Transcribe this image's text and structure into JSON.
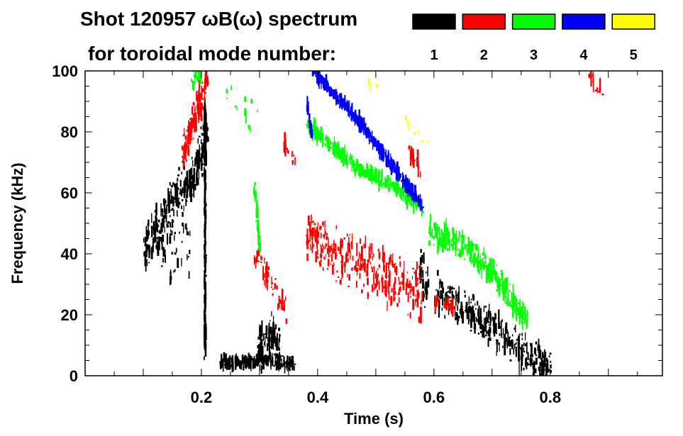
{
  "chart_data": {
    "type": "heatmap",
    "title": "Shot 120957 ωB(ω) spectrum",
    "subtitle": "for toroidal mode number:",
    "xlabel": "Time (s)",
    "ylabel": "Frequency (kHz)",
    "xlim": [
      0,
      0.993
    ],
    "ylim": [
      0,
      100
    ],
    "xticks": [
      0.2,
      0.4,
      0.6,
      0.8
    ],
    "xtick_labels": [
      "0.2",
      "0.4",
      "0.6",
      "0.8"
    ],
    "yticks": [
      0,
      20,
      40,
      60,
      80,
      100
    ],
    "ytick_labels": [
      "0",
      "20",
      "40",
      "60",
      "80",
      "100"
    ],
    "grid": false,
    "legend_placement": "top-right",
    "legend": [
      {
        "label": "1",
        "color": "#000000"
      },
      {
        "label": "2",
        "color": "#ff0000"
      },
      {
        "label": "3",
        "color": "#00ff00"
      },
      {
        "label": "4",
        "color": "#0000ff"
      },
      {
        "label": "5",
        "color": "#ffff00"
      }
    ],
    "series": [
      {
        "mode": 1,
        "color": "#000000",
        "features": [
          {
            "path": [
              [
                0.1,
                42
              ],
              [
                0.13,
                50
              ],
              [
                0.16,
                60
              ],
              [
                0.19,
                68
              ],
              [
                0.21,
                80
              ]
            ],
            "spread": 9,
            "density": 1.0
          },
          {
            "path": [
              [
                0.13,
                40
              ],
              [
                0.15,
                38
              ],
              [
                0.18,
                40
              ]
            ],
            "spread": 14,
            "density": 0.6
          },
          {
            "path": [
              [
                0.205,
                8
              ],
              [
                0.205,
                90
              ]
            ],
            "spread": 4,
            "density": 0.8
          },
          {
            "path": [
              [
                0.23,
                4
              ],
              [
                0.3,
                5
              ],
              [
                0.36,
                4
              ]
            ],
            "spread": 2.5,
            "density": 1.0
          },
          {
            "path": [
              [
                0.295,
                8
              ],
              [
                0.32,
                14
              ],
              [
                0.335,
                8
              ]
            ],
            "spread": 8,
            "density": 1.0
          },
          {
            "path": [
              [
                0.575,
                35
              ],
              [
                0.59,
                28
              ]
            ],
            "spread": 9,
            "density": 0.9
          },
          {
            "path": [
              [
                0.6,
                28
              ],
              [
                0.65,
                22
              ],
              [
                0.7,
                15
              ],
              [
                0.75,
                8
              ],
              [
                0.8,
                2
              ]
            ],
            "spread": 7,
            "density": 1.0
          }
        ]
      },
      {
        "mode": 2,
        "color": "#ff0000",
        "features": [
          {
            "path": [
              [
                0.165,
                72
              ],
              [
                0.185,
                84
              ],
              [
                0.21,
                98
              ]
            ],
            "spread": 7,
            "density": 0.9
          },
          {
            "path": [
              [
                0.38,
                46
              ],
              [
                0.45,
                38
              ],
              [
                0.52,
                32
              ],
              [
                0.58,
                27
              ]
            ],
            "spread": 10,
            "density": 1.0
          },
          {
            "path": [
              [
                0.29,
                40
              ],
              [
                0.32,
                30
              ],
              [
                0.345,
                22
              ]
            ],
            "spread": 5,
            "density": 0.6
          },
          {
            "path": [
              [
                0.34,
                76
              ],
              [
                0.36,
                70
              ]
            ],
            "spread": 3,
            "density": 0.6
          },
          {
            "path": [
              [
                0.555,
                74
              ],
              [
                0.575,
                67
              ]
            ],
            "spread": 3,
            "density": 0.5
          },
          {
            "path": [
              [
                0.6,
                25
              ],
              [
                0.64,
                22
              ]
            ],
            "spread": 2,
            "density": 0.6
          },
          {
            "path": [
              [
                0.86,
                100
              ],
              [
                0.89,
                92
              ]
            ],
            "spread": 3,
            "density": 0.4
          }
        ]
      },
      {
        "mode": 3,
        "color": "#00ff00",
        "features": [
          {
            "path": [
              [
                0.18,
                96
              ],
              [
                0.2,
                100
              ]
            ],
            "spread": 4,
            "density": 0.6
          },
          {
            "path": [
              [
                0.24,
                92
              ],
              [
                0.3,
                82
              ]
            ],
            "spread": 10,
            "density": 0.3
          },
          {
            "path": [
              [
                0.29,
                62
              ],
              [
                0.3,
                42
              ]
            ],
            "spread": 3,
            "density": 0.6
          },
          {
            "path": [
              [
                0.38,
                82
              ],
              [
                0.43,
                74
              ],
              [
                0.47,
                68
              ],
              [
                0.53,
                62
              ],
              [
                0.58,
                55
              ]
            ],
            "spread": 2.5,
            "density": 1.0
          },
          {
            "path": [
              [
                0.59,
                48
              ],
              [
                0.65,
                42
              ],
              [
                0.7,
                34
              ],
              [
                0.76,
                17
              ]
            ],
            "spread": 5,
            "density": 1.0
          }
        ]
      },
      {
        "mode": 4,
        "color": "#0000ff",
        "features": [
          {
            "path": [
              [
                0.39,
                100
              ],
              [
                0.45,
                88
              ],
              [
                0.5,
                76
              ],
              [
                0.55,
                63
              ],
              [
                0.58,
                55
              ]
            ],
            "spread": 1.5,
            "density": 1.0
          },
          {
            "path": [
              [
                0.38,
                90
              ],
              [
                0.39,
                78
              ]
            ],
            "spread": 2,
            "density": 0.5
          }
        ]
      },
      {
        "mode": 5,
        "color": "#ffff00",
        "features": [
          {
            "path": [
              [
                0.48,
                95
              ],
              [
                0.5,
                94
              ]
            ],
            "spread": 2,
            "density": 0.2
          },
          {
            "path": [
              [
                0.55,
                82
              ],
              [
                0.6,
                74
              ]
            ],
            "spread": 3,
            "density": 0.2
          }
        ]
      }
    ]
  }
}
